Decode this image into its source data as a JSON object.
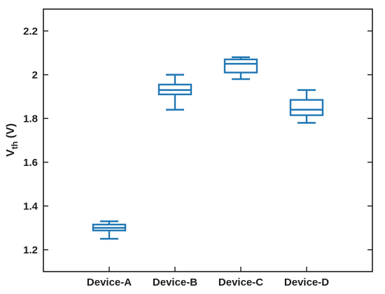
{
  "chart_data": {
    "type": "box",
    "title": "",
    "xlabel": "",
    "ylabel": {
      "main": "V",
      "subscript": "th",
      "suffix": " (V)"
    },
    "ylim": [
      1.1,
      2.3
    ],
    "yticks": [
      1.2,
      1.4,
      1.6,
      1.8,
      2.0,
      2.2
    ],
    "ytick_labels": [
      "1.2",
      "1.4",
      "1.6",
      "1.8",
      "2",
      "2.2"
    ],
    "categories": [
      "Device-A",
      "Device-B",
      "Device-C",
      "Device-D"
    ],
    "boxes": [
      {
        "name": "Device-A",
        "min": 1.25,
        "q1": 1.288,
        "median": 1.3,
        "q3": 1.315,
        "max": 1.33
      },
      {
        "name": "Device-B",
        "min": 1.84,
        "q1": 1.91,
        "median": 1.93,
        "q3": 1.955,
        "max": 2.0
      },
      {
        "name": "Device-C",
        "min": 1.98,
        "q1": 2.01,
        "median": 2.05,
        "q3": 2.07,
        "max": 2.08
      },
      {
        "name": "Device-D",
        "min": 1.78,
        "q1": 1.815,
        "median": 1.84,
        "q3": 1.885,
        "max": 1.93
      }
    ],
    "color": "#1f77b4",
    "grid": false,
    "legend": "none"
  }
}
